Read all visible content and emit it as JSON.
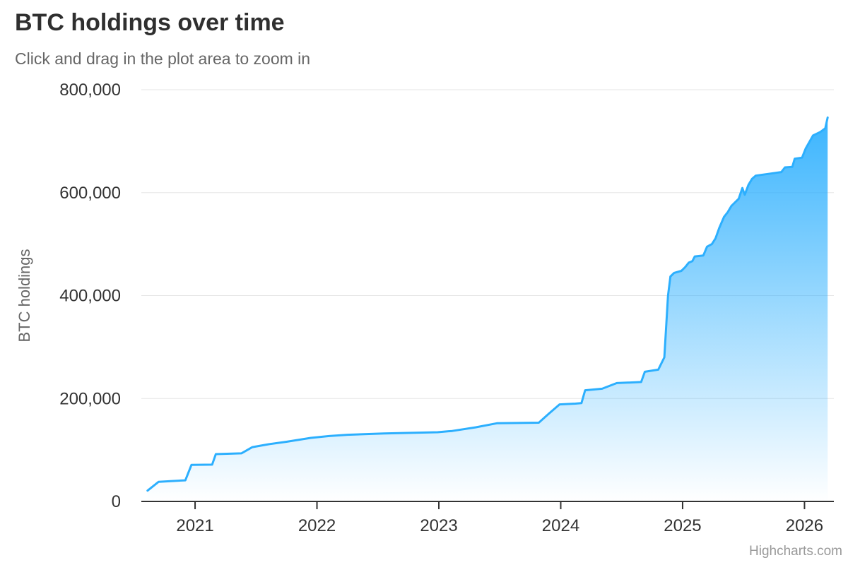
{
  "chart": {
    "title": "BTC holdings over time",
    "subtitle": "Click and drag in the plot area to zoom in",
    "credits": "Highcharts.com"
  },
  "chart_data": {
    "type": "area",
    "title": "BTC holdings over time",
    "subtitle": "Click and drag in the plot area to zoom in",
    "xlabel": "",
    "ylabel": "BTC holdings",
    "x_ticks": [
      2021,
      2022,
      2023,
      2024,
      2025,
      2026
    ],
    "y_ticks": [
      0,
      200000,
      400000,
      600000,
      800000
    ],
    "xlim": [
      2020.559,
      2026.241
    ],
    "ylim": [
      0,
      800000
    ],
    "grid": "horizontal",
    "legend": "none",
    "series": [
      {
        "name": "BTC holdings",
        "points": [
          [
            2020.61,
            21000
          ],
          [
            2020.7,
            38000
          ],
          [
            2020.8,
            39500
          ],
          [
            2020.92,
            41000
          ],
          [
            2020.97,
            71000
          ],
          [
            2021.14,
            71500
          ],
          [
            2021.17,
            92000
          ],
          [
            2021.38,
            93500
          ],
          [
            2021.47,
            105500
          ],
          [
            2021.6,
            111000
          ],
          [
            2021.75,
            116000
          ],
          [
            2021.95,
            123500
          ],
          [
            2022.1,
            127000
          ],
          [
            2022.25,
            129500
          ],
          [
            2022.55,
            132000
          ],
          [
            2022.99,
            134500
          ],
          [
            2023.11,
            137000
          ],
          [
            2023.3,
            144000
          ],
          [
            2023.48,
            152000
          ],
          [
            2023.82,
            153000
          ],
          [
            2023.9,
            170000
          ],
          [
            2023.99,
            188500
          ],
          [
            2024.12,
            190000
          ],
          [
            2024.17,
            191000
          ],
          [
            2024.2,
            216000
          ],
          [
            2024.34,
            219000
          ],
          [
            2024.46,
            230000
          ],
          [
            2024.66,
            232000
          ],
          [
            2024.69,
            252000
          ],
          [
            2024.8,
            256000
          ],
          [
            2024.85,
            280000
          ],
          [
            2024.88,
            400000
          ],
          [
            2024.9,
            437000
          ],
          [
            2024.93,
            444000
          ],
          [
            2024.99,
            448000
          ],
          [
            2025.02,
            455000
          ],
          [
            2025.05,
            464000
          ],
          [
            2025.08,
            467000
          ],
          [
            2025.1,
            476000
          ],
          [
            2025.17,
            478000
          ],
          [
            2025.2,
            495000
          ],
          [
            2025.24,
            500000
          ],
          [
            2025.27,
            511000
          ],
          [
            2025.3,
            531000
          ],
          [
            2025.34,
            553000
          ],
          [
            2025.37,
            562000
          ],
          [
            2025.4,
            574000
          ],
          [
            2025.43,
            581000
          ],
          [
            2025.46,
            588000
          ],
          [
            2025.49,
            609000
          ],
          [
            2025.51,
            596000
          ],
          [
            2025.54,
            615000
          ],
          [
            2025.57,
            627000
          ],
          [
            2025.6,
            633000
          ],
          [
            2025.72,
            637000
          ],
          [
            2025.78,
            639000
          ],
          [
            2025.81,
            640000
          ],
          [
            2025.84,
            649000
          ],
          [
            2025.9,
            650000
          ],
          [
            2025.92,
            666000
          ],
          [
            2025.98,
            668000
          ],
          [
            2026.01,
            686000
          ],
          [
            2026.07,
            711000
          ],
          [
            2026.13,
            718000
          ],
          [
            2026.17,
            725000
          ],
          [
            2026.19,
            746000
          ]
        ]
      }
    ],
    "colors": {
      "line": "#2caffe",
      "area_top": "rgba(44,175,254,1)",
      "area_bottom": "rgba(44,175,254,0)",
      "grid": "#e6e6e6",
      "axis_line": "#333333",
      "tick_label": "#333333",
      "title": "#2f2f2f",
      "subtitle": "#666666",
      "axis_title": "#666666",
      "credits": "#999999"
    }
  }
}
